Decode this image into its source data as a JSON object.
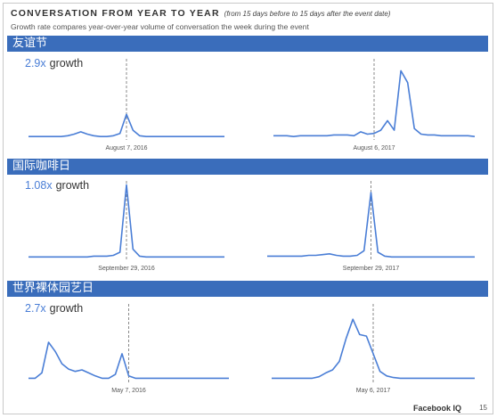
{
  "header": {
    "title": "CONVERSATION FROM YEAR TO YEAR",
    "title_note": "(from 15 days before to 15 days after the event date)",
    "subtitle": "Growth rate compares year-over-year volume of conversation the week during the event"
  },
  "footer": {
    "brand": "Facebook IQ",
    "page": "15"
  },
  "colors": {
    "band": "#3a6dbb",
    "line": "#4a7ed6",
    "growth_number": "#4a7ed6"
  },
  "chart_data": [
    {
      "type": "line",
      "title": "友谊节",
      "growth_value": "2.9x",
      "growth_label": "growth",
      "panels": [
        {
          "date_label": "August 7, 2016",
          "event_index": 15,
          "values": [
            2,
            2,
            2,
            2,
            2,
            2,
            3,
            5,
            8,
            5,
            3,
            2,
            2,
            3,
            6,
            30,
            10,
            3,
            2,
            2,
            2,
            2,
            2,
            2,
            2,
            2,
            2,
            2,
            2,
            2,
            2
          ]
        },
        {
          "date_label": "August 6, 2017",
          "event_index": 15,
          "values": [
            3,
            3,
            3,
            2,
            3,
            3,
            3,
            3,
            3,
            4,
            4,
            4,
            3,
            8,
            5,
            6,
            10,
            22,
            10,
            85,
            70,
            12,
            5,
            4,
            4,
            3,
            3,
            3,
            3,
            3,
            2
          ]
        }
      ]
    },
    {
      "type": "line",
      "title": "国际咖啡日",
      "growth_value": "1.08x",
      "growth_label": "growth",
      "panels": [
        {
          "date_label": "September 29, 2016",
          "event_index": 15,
          "values": [
            2,
            2,
            2,
            2,
            2,
            2,
            2,
            2,
            2,
            2,
            3,
            3,
            3,
            4,
            8,
            95,
            12,
            3,
            2,
            2,
            2,
            2,
            2,
            2,
            2,
            2,
            2,
            2,
            2,
            2,
            2
          ]
        },
        {
          "date_label": "September 29, 2017",
          "event_index": 15,
          "values": [
            3,
            3,
            3,
            3,
            3,
            3,
            4,
            4,
            5,
            6,
            4,
            3,
            3,
            4,
            10,
            85,
            8,
            3,
            2,
            2,
            2,
            2,
            2,
            2,
            2,
            2,
            2,
            2,
            2,
            2,
            2
          ]
        }
      ]
    },
    {
      "type": "line",
      "title": "世界裸体园艺日",
      "growth_value": "2.7x",
      "growth_label": "growth",
      "panels": [
        {
          "date_label": "May 7, 2016",
          "event_index": 15,
          "values": [
            3,
            3,
            10,
            50,
            38,
            22,
            15,
            12,
            14,
            10,
            6,
            3,
            3,
            8,
            35,
            6,
            3,
            3,
            3,
            3,
            3,
            3,
            3,
            3,
            3,
            3,
            3,
            3,
            3,
            3,
            3
          ]
        },
        {
          "date_label": "May 6, 2017",
          "event_index": 15,
          "values": [
            3,
            3,
            3,
            3,
            3,
            3,
            3,
            5,
            10,
            14,
            25,
            55,
            80,
            60,
            58,
            35,
            12,
            6,
            4,
            3,
            3,
            3,
            3,
            3,
            3,
            3,
            3,
            3,
            3,
            3,
            3
          ]
        }
      ]
    }
  ]
}
